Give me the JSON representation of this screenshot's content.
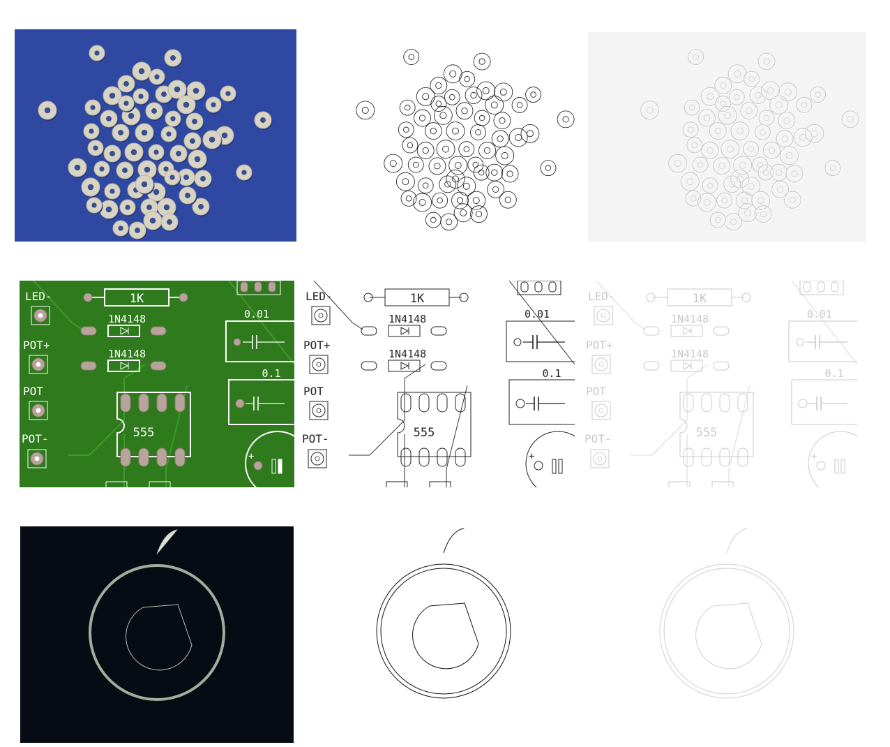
{
  "colors": {
    "cereal_background": "#2f49a3",
    "cereal_ring": "#d8d4c4",
    "pcb_green": "#2f7a1c",
    "pcb_silkscreen": "#ffffff",
    "pcb_pad": "#b7a49a",
    "gear_background": "#070b14",
    "gear_fill": "#dcdfcf",
    "edge_ink": "#111111",
    "emboss_bg": "#f4f4f4"
  },
  "pcb": {
    "labels": {
      "led_minus": "LED-",
      "pot_plus": "POT+",
      "pot": "POT",
      "pot_minus": "POT-",
      "resistor": "1K",
      "diode_1": "1N4148",
      "diode_2": "1N4148",
      "chip": "555",
      "cap_1": "0.01",
      "cap_2": "0.1",
      "elec_plus": "+"
    }
  },
  "grid": {
    "rows": [
      {
        "subject": "cereal-rings",
        "panels": [
          "cereal-photo",
          "cereal-edges",
          "cereal-emboss"
        ]
      },
      {
        "subject": "circuit-board",
        "panels": [
          "pcb-photo",
          "pcb-edges",
          "pcb-emboss"
        ]
      },
      {
        "subject": "gear",
        "panels": [
          "gear-photo",
          "gear-edges",
          "gear-emboss"
        ]
      }
    ]
  }
}
